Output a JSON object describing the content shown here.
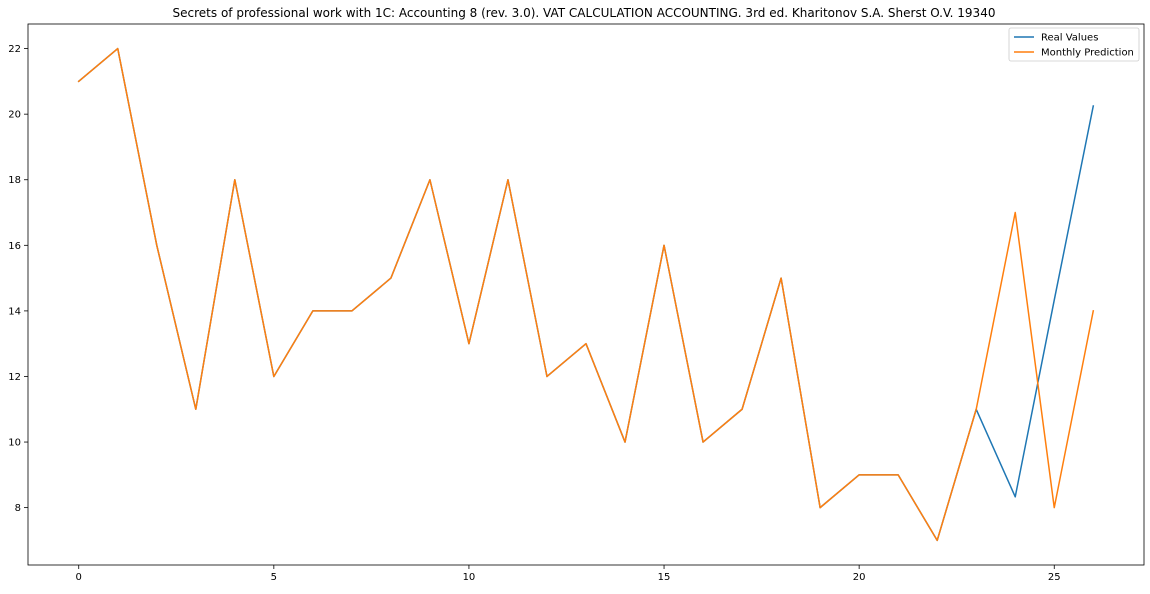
{
  "chart_data": {
    "type": "line",
    "title": "Secrets of professional work with 1C: Accounting 8 (rev. 3.0). VAT CALCULATION ACCOUNTING. 3rd ed. Kharitonov S.A. Sherst O.V. 19340",
    "xlabel": "",
    "ylabel": "",
    "x": [
      0,
      1,
      2,
      3,
      4,
      5,
      6,
      7,
      8,
      9,
      10,
      11,
      12,
      13,
      14,
      15,
      16,
      17,
      18,
      19,
      20,
      21,
      22,
      23,
      24,
      25,
      26
    ],
    "xlim": [
      -1.3,
      27.3
    ],
    "ylim": [
      6.25,
      22.75
    ],
    "xticks": [
      0,
      5,
      10,
      15,
      20,
      25
    ],
    "yticks": [
      8,
      10,
      12,
      14,
      16,
      18,
      20,
      22
    ],
    "grid": false,
    "legend_position": "top-right",
    "series": [
      {
        "name": "Real Values",
        "color": "#1f77b4",
        "values": [
          21,
          22,
          16,
          11,
          18,
          12,
          14,
          14,
          15,
          18,
          13,
          18,
          12,
          13,
          10,
          16,
          10,
          11,
          15,
          8,
          9,
          9,
          7,
          11,
          8.33,
          14.33,
          20.25
        ]
      },
      {
        "name": "Monthly Prediction",
        "color": "#ff7f0e",
        "values": [
          21,
          22,
          16,
          11,
          18,
          12,
          14,
          14,
          15,
          18,
          13,
          18,
          12,
          13,
          10,
          16,
          10,
          11,
          15,
          8,
          9,
          9,
          7,
          11,
          17,
          8,
          14
        ]
      }
    ]
  }
}
